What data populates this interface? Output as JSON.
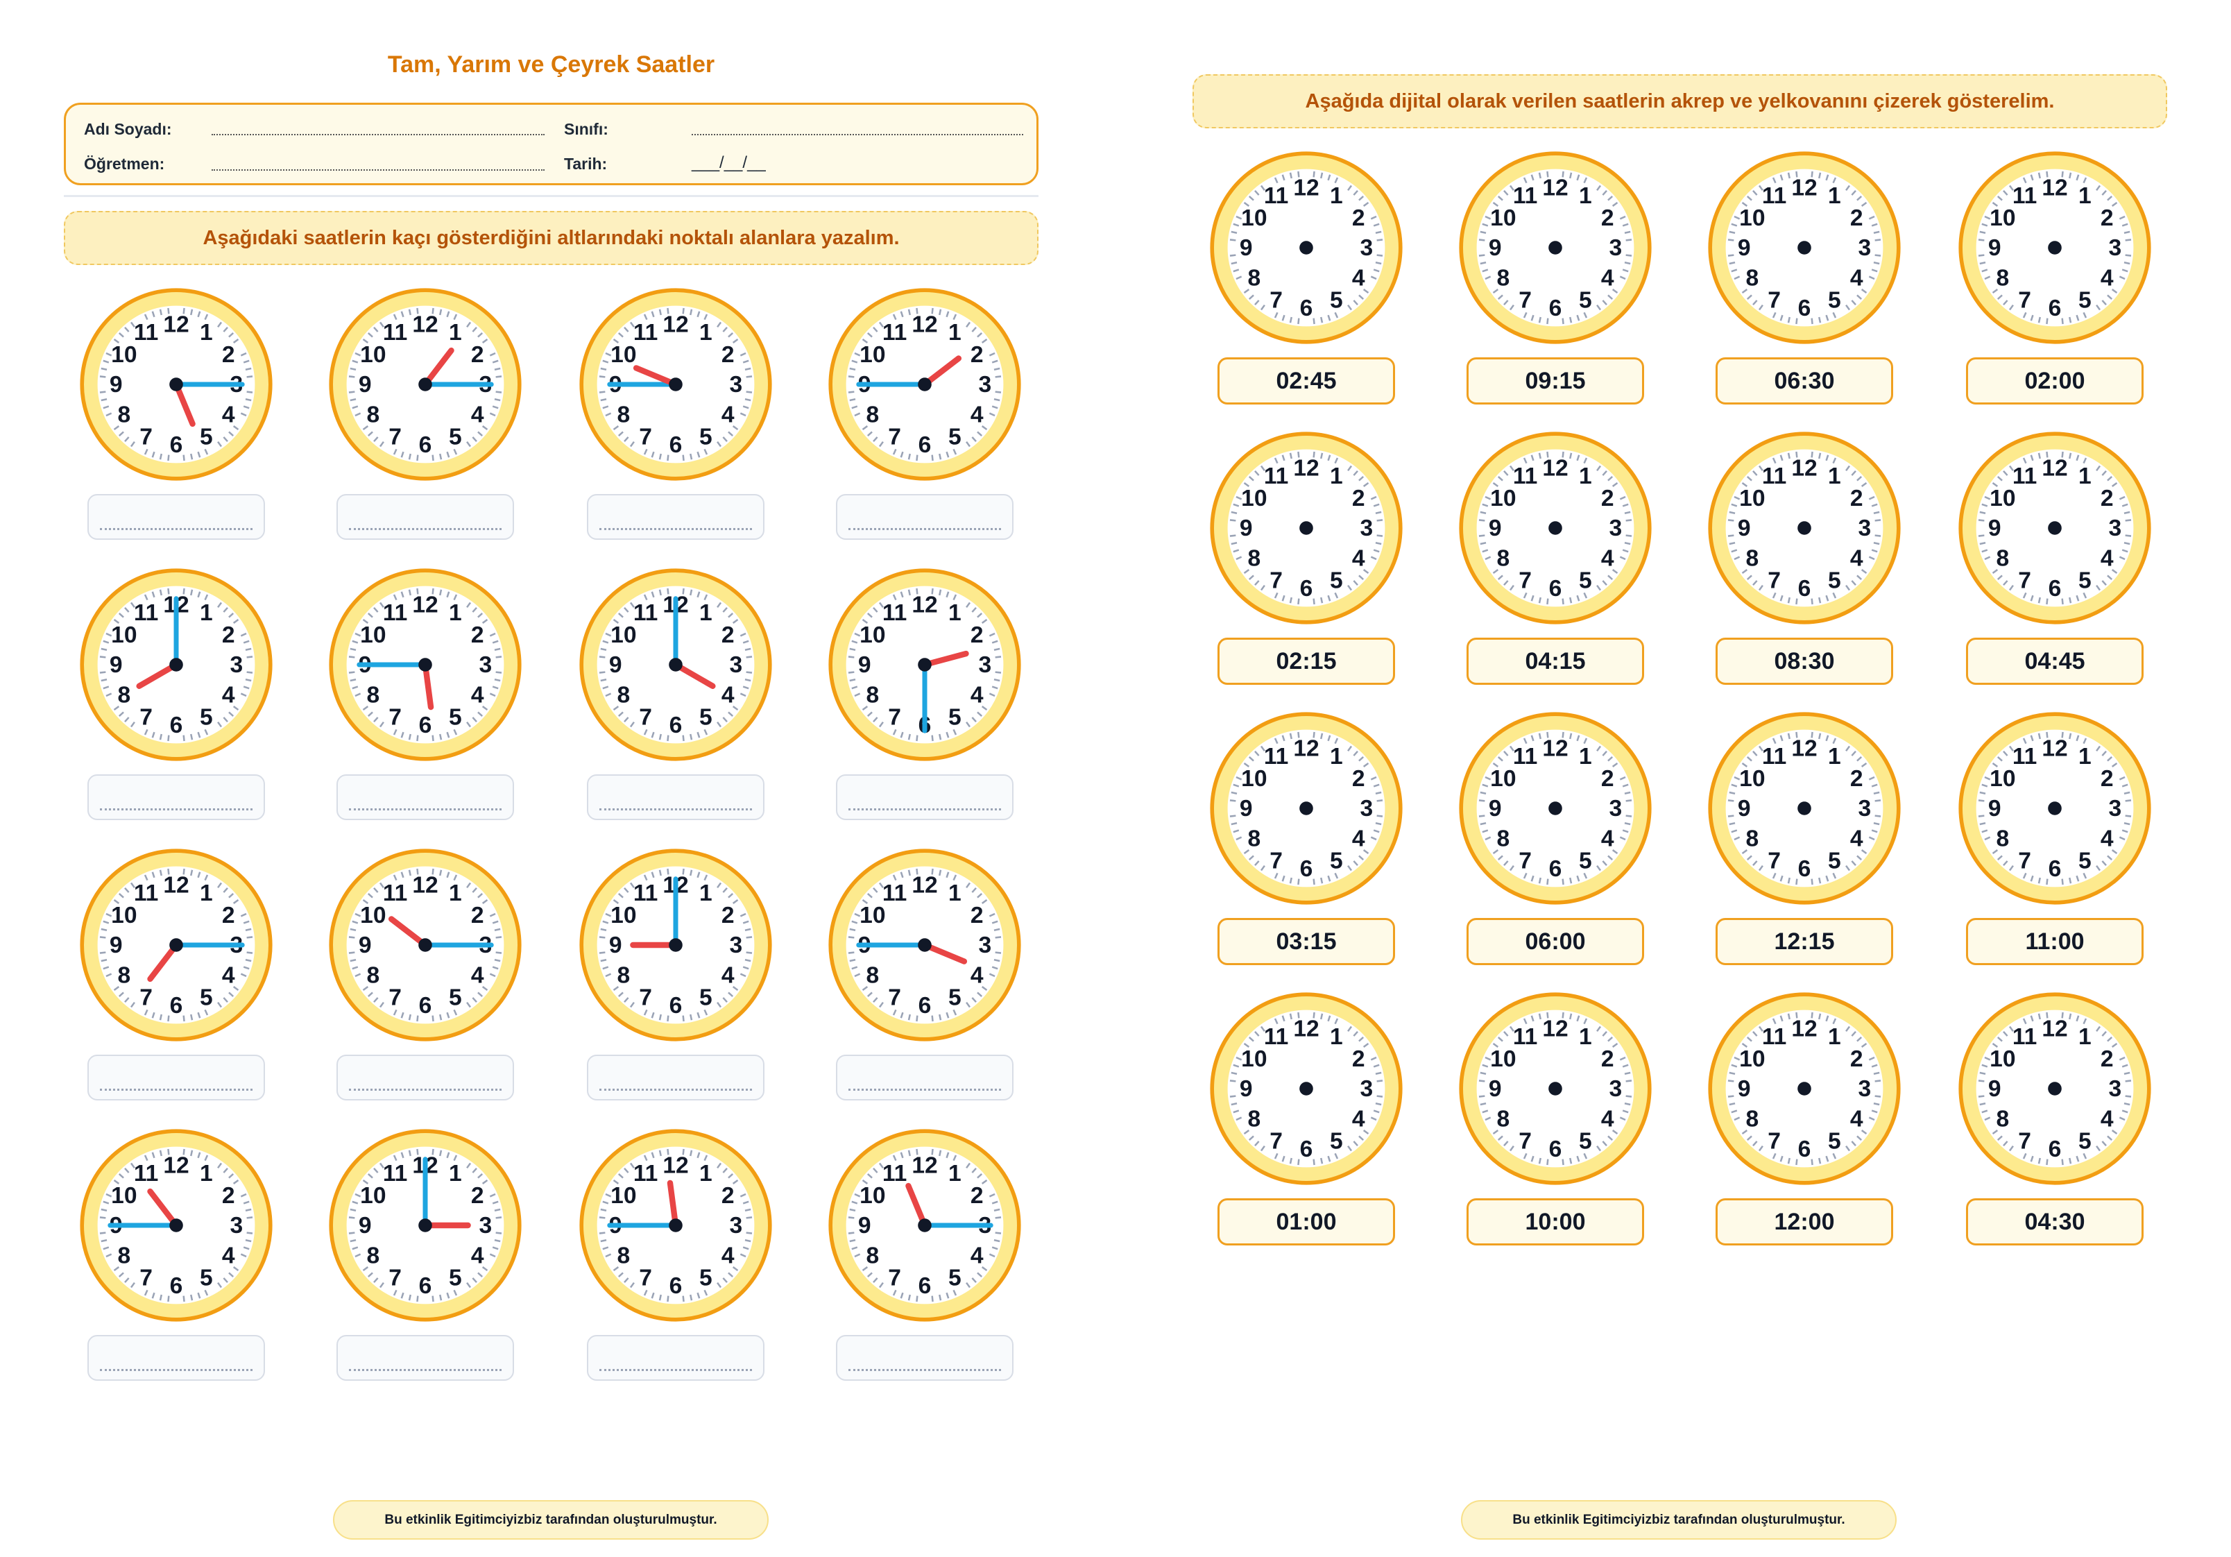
{
  "left_page": {
    "title": "Tam, Yarım ve Çeyrek Saatler",
    "info": {
      "name_label": "Adı Soyadı:",
      "class_label": "Sınıfı:",
      "teacher_label": "Öğretmen:",
      "date_label": "Tarih:",
      "date_value": "___/__/__"
    },
    "instruction": "Aşağıdaki saatlerin kaçı gösterdiğini altlarındaki noktalı alanlara yazalım.",
    "clocks": [
      {
        "hour": 5,
        "minute": 15
      },
      {
        "hour": 1,
        "minute": 15
      },
      {
        "hour": 9,
        "minute": 45
      },
      {
        "hour": 1,
        "minute": 45
      },
      {
        "hour": 8,
        "minute": 0
      },
      {
        "hour": 5,
        "minute": 45
      },
      {
        "hour": 4,
        "minute": 0
      },
      {
        "hour": 2,
        "minute": 30
      },
      {
        "hour": 7,
        "minute": 15
      },
      {
        "hour": 10,
        "minute": 15
      },
      {
        "hour": 9,
        "minute": 0
      },
      {
        "hour": 3,
        "minute": 45
      },
      {
        "hour": 10,
        "minute": 45
      },
      {
        "hour": 3,
        "minute": 0
      },
      {
        "hour": 11,
        "minute": 45
      },
      {
        "hour": 11,
        "minute": 15
      }
    ],
    "footer": "Bu etkinlik Egitimciyizbiz tarafından oluşturulmuştur."
  },
  "right_page": {
    "instruction": "Aşağıda dijital olarak verilen saatlerin akrep ve yelkovanını çizerek gösterelim.",
    "times": [
      "02:45",
      "09:15",
      "06:30",
      "02:00",
      "02:15",
      "04:15",
      "08:30",
      "04:45",
      "03:15",
      "06:00",
      "12:15",
      "11:00",
      "01:00",
      "10:00",
      "12:00",
      "04:30"
    ],
    "footer": "Bu etkinlik Egitimciyizbiz tarafından oluşturulmuştur."
  },
  "dial_numbers": [
    "12",
    "1",
    "2",
    "3",
    "4",
    "5",
    "6",
    "7",
    "8",
    "9",
    "10",
    "11"
  ],
  "colors": {
    "rim": "#f29d12",
    "ring": "#fdea8e",
    "face": "#ffffff",
    "hour_hand": "#e84545",
    "minute_hand": "#1ea5e0",
    "tick": "#9aa3b5",
    "numeral": "#111827",
    "accent": "#d97706"
  }
}
